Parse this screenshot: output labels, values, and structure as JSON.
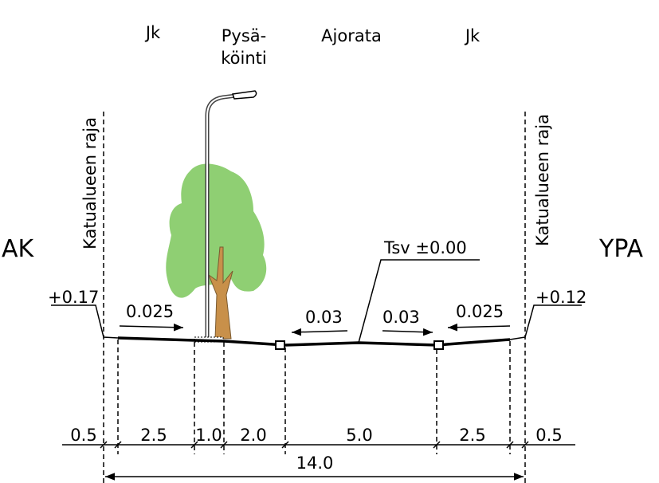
{
  "zones": [
    [
      "Jk"
    ],
    [
      "Pysä-",
      "köinti"
    ],
    [
      "Ajorata"
    ],
    [
      "Jk"
    ]
  ],
  "boundary_labels": [
    "Katualueen raja",
    "Katualueen raja"
  ],
  "side_labels": [
    "AK",
    "YPA"
  ],
  "elevations": [
    "+0.17",
    "+0.12"
  ],
  "reference": "Tsv ±0.00",
  "slopes": [
    "0.025",
    "0.03",
    "0.03",
    "0.025"
  ],
  "widths": [
    "0.5",
    "2.5",
    "1.0",
    "2.0",
    "5.0",
    "2.5",
    "0.5"
  ],
  "total_width": "14.0"
}
